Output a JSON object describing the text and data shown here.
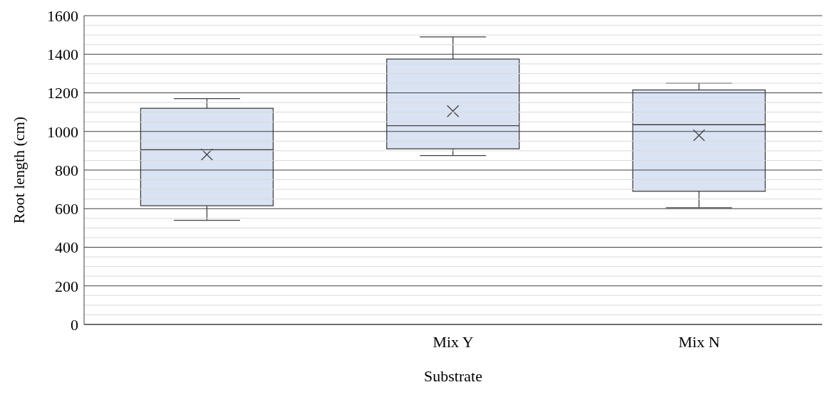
{
  "chart_data": {
    "type": "box",
    "xlabel": "Substrate",
    "ylabel": "Root length (cm)",
    "categories": [
      null,
      "Mix Y",
      "Mix N"
    ],
    "boxes": [
      {
        "low": 540,
        "q1": 615,
        "median": 905,
        "q3": 1120,
        "high": 1170,
        "mean": 880
      },
      {
        "low": 875,
        "q1": 910,
        "median": 1030,
        "q3": 1375,
        "high": 1490,
        "mean": 1105
      },
      {
        "low": 605,
        "q1": 690,
        "median": 1035,
        "q3": 1215,
        "high": 1250,
        "mean": 980
      }
    ],
    "color": "#dae3f3",
    "ylim": [
      0,
      1600
    ],
    "yticks": [
      0,
      {
        "value": 50,
        "label": null
      },
      {
        "value": 100,
        "label": null
      },
      {
        "value": 150,
        "label": null
      },
      200,
      {
        "value": 250,
        "label": null
      },
      {
        "value": 300,
        "label": null
      },
      {
        "value": 350,
        "label": null
      },
      400,
      {
        "value": 450,
        "label": null
      },
      {
        "value": 500,
        "label": null
      },
      {
        "value": 550,
        "label": null
      },
      600,
      {
        "value": 650,
        "label": null
      },
      {
        "value": 700,
        "label": null
      },
      {
        "value": 750,
        "label": null
      },
      800,
      {
        "value": 850,
        "label": null
      },
      {
        "value": 900,
        "label": null
      },
      {
        "value": 950,
        "label": null
      },
      1000,
      {
        "value": 1050,
        "label": null
      },
      {
        "value": 1100,
        "label": null
      },
      {
        "value": 1150,
        "label": null
      },
      1200,
      {
        "value": 1250,
        "label": null
      },
      {
        "value": 1300,
        "label": null
      },
      {
        "value": 1350,
        "label": null
      },
      1400,
      {
        "value": 1450,
        "label": null
      },
      {
        "value": 1500,
        "label": null
      },
      {
        "value": 1550,
        "label": null
      },
      1600
    ],
    "grid": "y",
    "marker": "cross"
  }
}
